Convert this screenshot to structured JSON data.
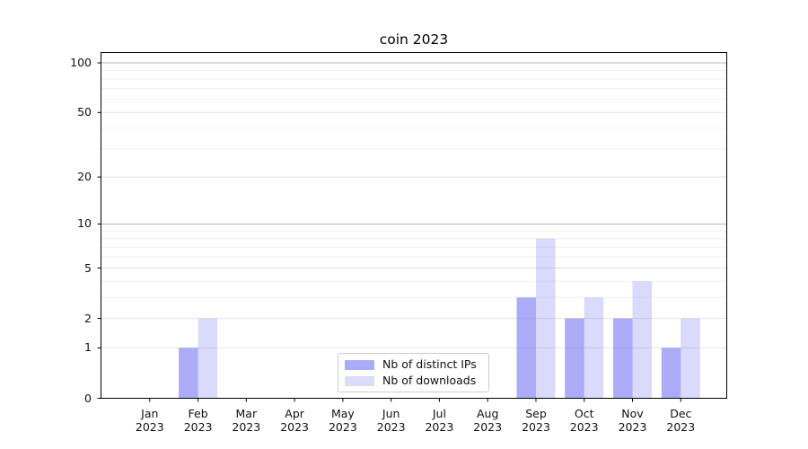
{
  "chart_data": {
    "type": "bar",
    "title": "coin 2023",
    "categories": [
      "Jan 2023",
      "Feb 2023",
      "Mar 2023",
      "Apr 2023",
      "May 2023",
      "Jun 2023",
      "Jul 2023",
      "Aug 2023",
      "Sep 2023",
      "Oct 2023",
      "Nov 2023",
      "Dec 2023"
    ],
    "series": [
      {
        "name": "Nb of distinct IPs",
        "values": [
          0,
          1,
          0,
          0,
          0,
          0,
          0,
          0,
          3,
          2,
          2,
          1
        ],
        "fill": "#696af2",
        "fill_opacity": 0.56,
        "legend_color": "#abacf7"
      },
      {
        "name": "Nb of downloads",
        "values": [
          0,
          2,
          0,
          0,
          0,
          0,
          0,
          0,
          8,
          3,
          4,
          2
        ],
        "fill": "#696af2",
        "fill_opacity": 0.25,
        "legend_color": "#dbdcf9"
      }
    ],
    "yscale": "log1p",
    "yticks": [
      0,
      1,
      2,
      5,
      10,
      20,
      50,
      100
    ],
    "minor_yticks": [
      3,
      4,
      6,
      7,
      8,
      9,
      30,
      40,
      60,
      70,
      80,
      90
    ],
    "emphasized_gridlines": [
      10,
      100
    ],
    "ylim": [
      0,
      116
    ],
    "xlabel": "",
    "ylabel": "",
    "grid": "both",
    "legend_position": "lower center"
  },
  "colors": {
    "grid_minor": "#f0f0f0",
    "grid_major": "#e2e2e2",
    "grid_major_dark": "#b5b5b5",
    "spine": "#000000",
    "tick": "#000000",
    "text": "#111111",
    "legend_border": "#cccccc",
    "legend_bg": "#ffffff"
  }
}
